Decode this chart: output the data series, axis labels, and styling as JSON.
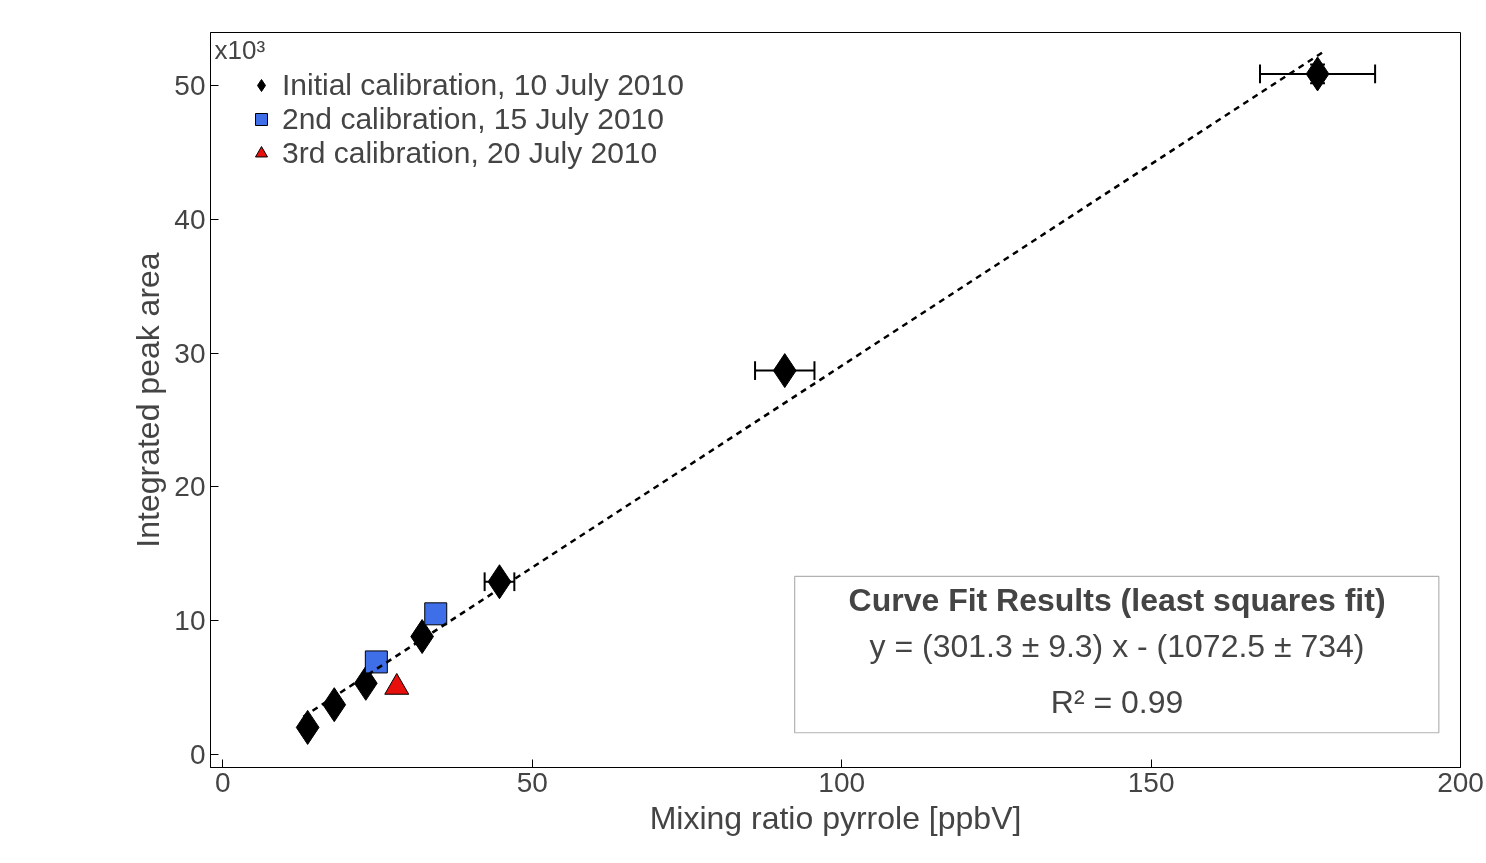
{
  "chart_data": {
    "type": "scatter",
    "xlabel": "Mixing ratio pyrrole [ppbV]",
    "ylabel": "Integrated peak area",
    "xlim": [
      -2,
      200
    ],
    "ylim": [
      -1,
      54
    ],
    "xticks": [
      0,
      50,
      100,
      150,
      200
    ],
    "yticks": [
      0,
      10,
      20,
      30,
      40,
      50
    ],
    "grid": false,
    "legend": "top left",
    "series": [
      {
        "name": "Initial calibration, 10 July 2010",
        "color": "#000000",
        "marker": "diamond",
        "x": [
          13.7,
          18.0,
          23.1,
          32.2,
          44.7,
          90.8,
          176.9
        ],
        "values": [
          2.0,
          3.7,
          5.3,
          8.8,
          12.9,
          28.7,
          50.9
        ],
        "errors": [
          null,
          null,
          null,
          null,
          null,
          null,
          0.7
        ],
        "xerrors": [
          null,
          null,
          null,
          null,
          2.4,
          4.8,
          9.3
        ]
      },
      {
        "name": "2nd calibration, 15 July 2010",
        "color": "#3f6fe8",
        "marker": "square",
        "x": [
          24.8,
          34.4
        ],
        "values": [
          6.9,
          10.5
        ]
      },
      {
        "name": "3rd calibration, 20 July 2010",
        "color": "#e8100c",
        "marker": "triangle",
        "x": [
          28.1
        ],
        "values": [
          5.0
        ]
      },
      {
        "type": "line",
        "color": "#000000",
        "line_style": "dashed",
        "x": [
          13,
          178
        ],
        "values": [
          2.8,
          52.6
        ]
      }
    ],
    "annotations": [
      "Curve Fit Results (least squares fit)",
      "y = (301.3 ± 9.3) x - (1072.5 ± 734)",
      "R² = 0.99",
      "x10³"
    ]
  }
}
